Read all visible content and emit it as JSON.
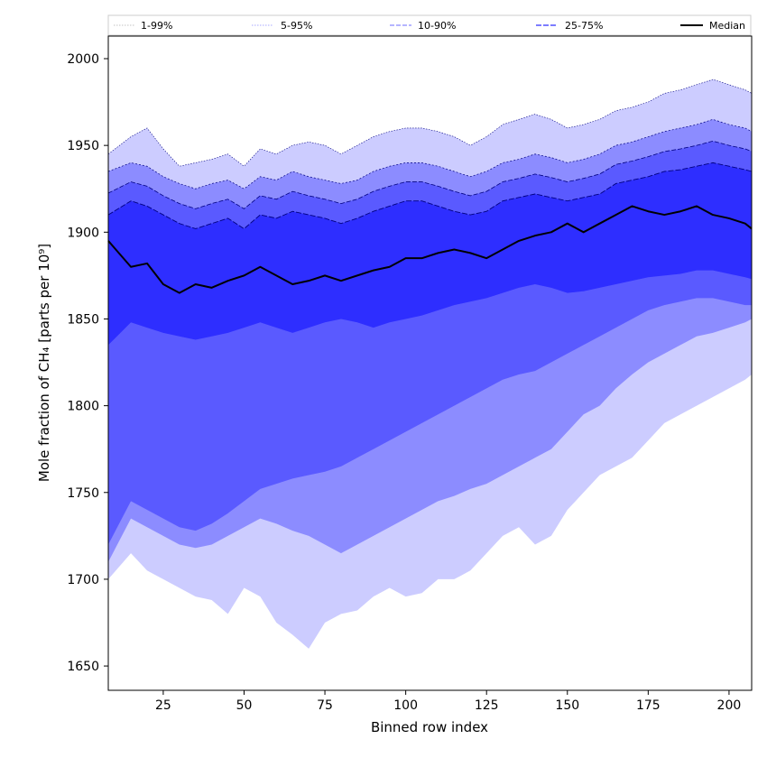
{
  "chart_data": {
    "type": "area",
    "xlabel": "Binned row index",
    "ylabel": "Mole fraction of CH₄ [parts per 10⁹]",
    "xlim": [
      8,
      207
    ],
    "ylim": [
      1636,
      2013
    ],
    "xticks": [
      25,
      50,
      75,
      100,
      125,
      150,
      175,
      200
    ],
    "yticks": [
      1650,
      1700,
      1750,
      1800,
      1850,
      1900,
      1950,
      2000
    ],
    "grid": false,
    "legend_placement": "top",
    "legend": [
      "1-99%",
      "5-95%",
      "10-90%",
      "25-75%",
      "Median"
    ],
    "colors": {
      "band_1_99": "#ccccff",
      "band_5_95": "#8c8cff",
      "band_10_90": "#5a5aff",
      "band_25_75": "#2e2eff",
      "median": "#000000",
      "edge": "#000080"
    },
    "x": [
      8,
      15,
      20,
      25,
      30,
      35,
      40,
      45,
      50,
      55,
      60,
      65,
      70,
      75,
      80,
      85,
      90,
      95,
      100,
      105,
      110,
      115,
      120,
      125,
      130,
      135,
      140,
      145,
      150,
      155,
      160,
      165,
      170,
      175,
      180,
      185,
      190,
      195,
      200,
      205,
      207
    ],
    "series": [
      {
        "name": "1-99%",
        "lower": [
          1700,
          1715,
          1705,
          1700,
          1695,
          1690,
          1688,
          1680,
          1695,
          1690,
          1675,
          1668,
          1660,
          1675,
          1680,
          1682,
          1690,
          1695,
          1690,
          1692,
          1700,
          1700,
          1705,
          1715,
          1725,
          1730,
          1720,
          1725,
          1740,
          1750,
          1760,
          1765,
          1770,
          1780,
          1790,
          1795,
          1800,
          1805,
          1810,
          1815,
          1818
        ],
        "upper": [
          1945,
          1955,
          1960,
          1948,
          1938,
          1940,
          1942,
          1945,
          1938,
          1948,
          1945,
          1950,
          1952,
          1950,
          1945,
          1950,
          1955,
          1958,
          1960,
          1960,
          1958,
          1955,
          1950,
          1955,
          1962,
          1965,
          1968,
          1965,
          1960,
          1962,
          1965,
          1970,
          1972,
          1975,
          1980,
          1982,
          1985,
          1988,
          1985,
          1982,
          1980
        ]
      },
      {
        "name": "5-95%",
        "lower": [
          1710,
          1735,
          1730,
          1725,
          1720,
          1718,
          1720,
          1725,
          1730,
          1735,
          1732,
          1728,
          1725,
          1720,
          1715,
          1720,
          1725,
          1730,
          1735,
          1740,
          1745,
          1748,
          1752,
          1755,
          1760,
          1765,
          1770,
          1775,
          1785,
          1795,
          1800,
          1810,
          1818,
          1825,
          1830,
          1835,
          1840,
          1842,
          1845,
          1848,
          1850
        ],
        "upper": [
          1935,
          1940,
          1938,
          1932,
          1928,
          1925,
          1928,
          1930,
          1925,
          1932,
          1930,
          1935,
          1932,
          1930,
          1928,
          1930,
          1935,
          1938,
          1940,
          1940,
          1938,
          1935,
          1932,
          1935,
          1940,
          1942,
          1945,
          1943,
          1940,
          1942,
          1945,
          1950,
          1952,
          1955,
          1958,
          1960,
          1962,
          1965,
          1962,
          1960,
          1958
        ]
      },
      {
        "name": "10-90%",
        "lower": [
          1720,
          1745,
          1740,
          1735,
          1730,
          1728,
          1732,
          1738,
          1745,
          1752,
          1755,
          1758,
          1760,
          1762,
          1765,
          1770,
          1775,
          1780,
          1785,
          1790,
          1795,
          1800,
          1805,
          1810,
          1815,
          1818,
          1820,
          1825,
          1830,
          1835,
          1840,
          1845,
          1850,
          1855,
          1858,
          1860,
          1862,
          1862,
          1860,
          1858,
          1858
        ]
      },
      {
        "name": "25-75%",
        "lower": [
          1835,
          1848,
          1845,
          1842,
          1840,
          1838,
          1840,
          1842,
          1845,
          1848,
          1845,
          1842,
          1845,
          1848,
          1850,
          1848,
          1845,
          1848,
          1850,
          1852,
          1855,
          1858,
          1860,
          1862,
          1865,
          1868,
          1870,
          1868,
          1865,
          1866,
          1868,
          1870,
          1872,
          1874,
          1875,
          1876,
          1878,
          1878,
          1876,
          1874,
          1873
        ],
        "upper": [
          1910,
          1918,
          1915,
          1910,
          1905,
          1902,
          1905,
          1908,
          1902,
          1910,
          1908,
          1912,
          1910,
          1908,
          1905,
          1908,
          1912,
          1915,
          1918,
          1918,
          1915,
          1912,
          1910,
          1912,
          1918,
          1920,
          1922,
          1920,
          1918,
          1920,
          1922,
          1928,
          1930,
          1932,
          1935,
          1936,
          1938,
          1940,
          1938,
          1936,
          1935
        ]
      },
      {
        "name": "Median",
        "values": [
          1895,
          1880,
          1882,
          1870,
          1865,
          1870,
          1868,
          1872,
          1875,
          1880,
          1875,
          1870,
          1872,
          1875,
          1872,
          1875,
          1878,
          1880,
          1885,
          1885,
          1888,
          1890,
          1888,
          1885,
          1890,
          1895,
          1898,
          1900,
          1905,
          1900,
          1905,
          1910,
          1915,
          1912,
          1910,
          1912,
          1915,
          1910,
          1908,
          1905,
          1902
        ]
      }
    ]
  }
}
